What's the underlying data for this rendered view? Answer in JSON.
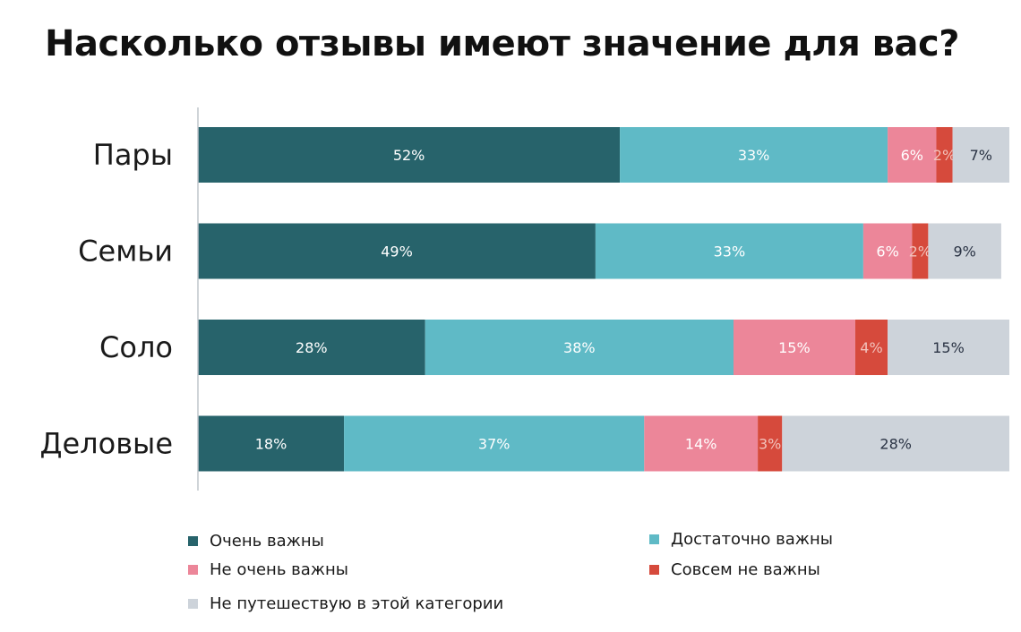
{
  "chart_data": {
    "type": "bar",
    "orientation": "horizontal",
    "stacked": true,
    "title": "Насколько отзывы имеют значение для вас?",
    "categories": [
      "Пары",
      "Семьи",
      "Соло",
      "Деловые"
    ],
    "series": [
      {
        "name": "Очень важны",
        "values": [
          52,
          49,
          28,
          18
        ],
        "color": "#27636b",
        "label_color": "#ffffff"
      },
      {
        "name": "Достаточно важны",
        "values": [
          33,
          33,
          38,
          37
        ],
        "color": "#5fbac6",
        "label_color": "#ffffff"
      },
      {
        "name": "Не очень важны",
        "values": [
          6,
          6,
          15,
          14
        ],
        "color": "#ec8699",
        "label_color": "#ffffff"
      },
      {
        "name": "Совсем не важны",
        "values": [
          2,
          2,
          4,
          3
        ],
        "color": "#d64a3c",
        "label_color": "#f2c2bb"
      },
      {
        "name": "Не путешествую в этой категории",
        "values": [
          7,
          9,
          15,
          28
        ],
        "color": "#cdd3da",
        "label_color": "#2a3344"
      }
    ],
    "value_suffix": "%",
    "xlim": [
      0,
      100
    ],
    "grid": false,
    "legend_position": "bottom"
  }
}
